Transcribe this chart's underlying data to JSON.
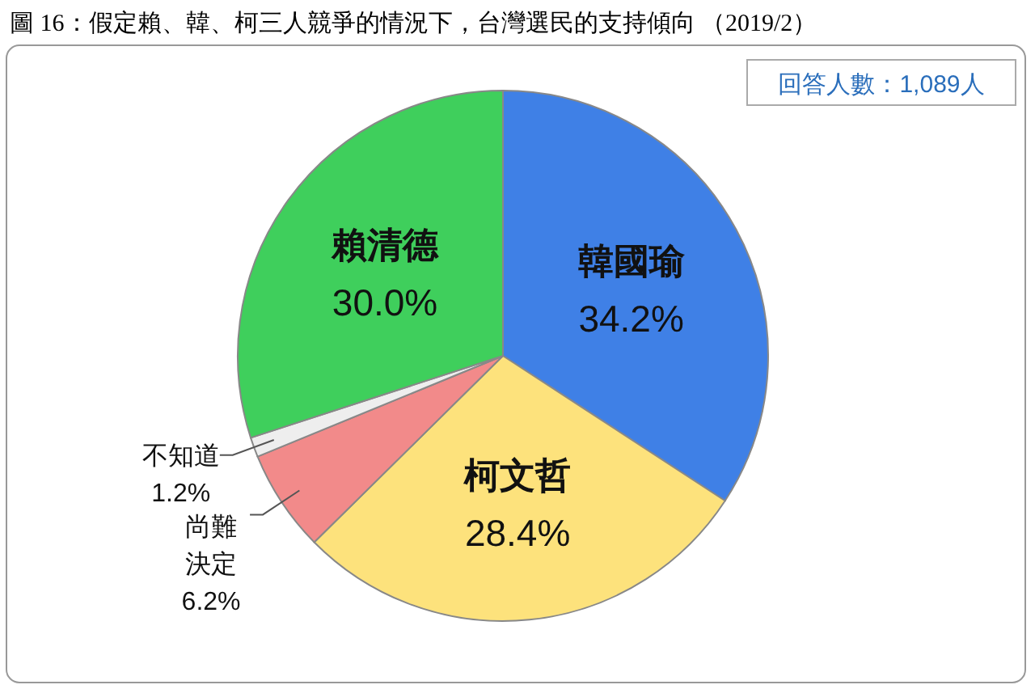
{
  "chart_data": {
    "type": "pie",
    "title": "圖 16：假定賴、韓、柯三人競爭的情況下，台灣選民的支持傾向 （2019/2）",
    "annotations": [
      "回答人數：1,089人"
    ],
    "categories": [
      "韓國瑜",
      "柯文哲",
      "尚難決定",
      "不知道",
      "賴清德"
    ],
    "values": [
      34.2,
      28.4,
      6.2,
      1.2,
      30.0
    ],
    "colors": [
      "#3f80e6",
      "#fde27c",
      "#f28a8a",
      "#eeeeee",
      "#3fcf5c"
    ],
    "value_labels": [
      "34.2%",
      "28.4%",
      "6.2%",
      "1.2%",
      "30.0%"
    ]
  }
}
